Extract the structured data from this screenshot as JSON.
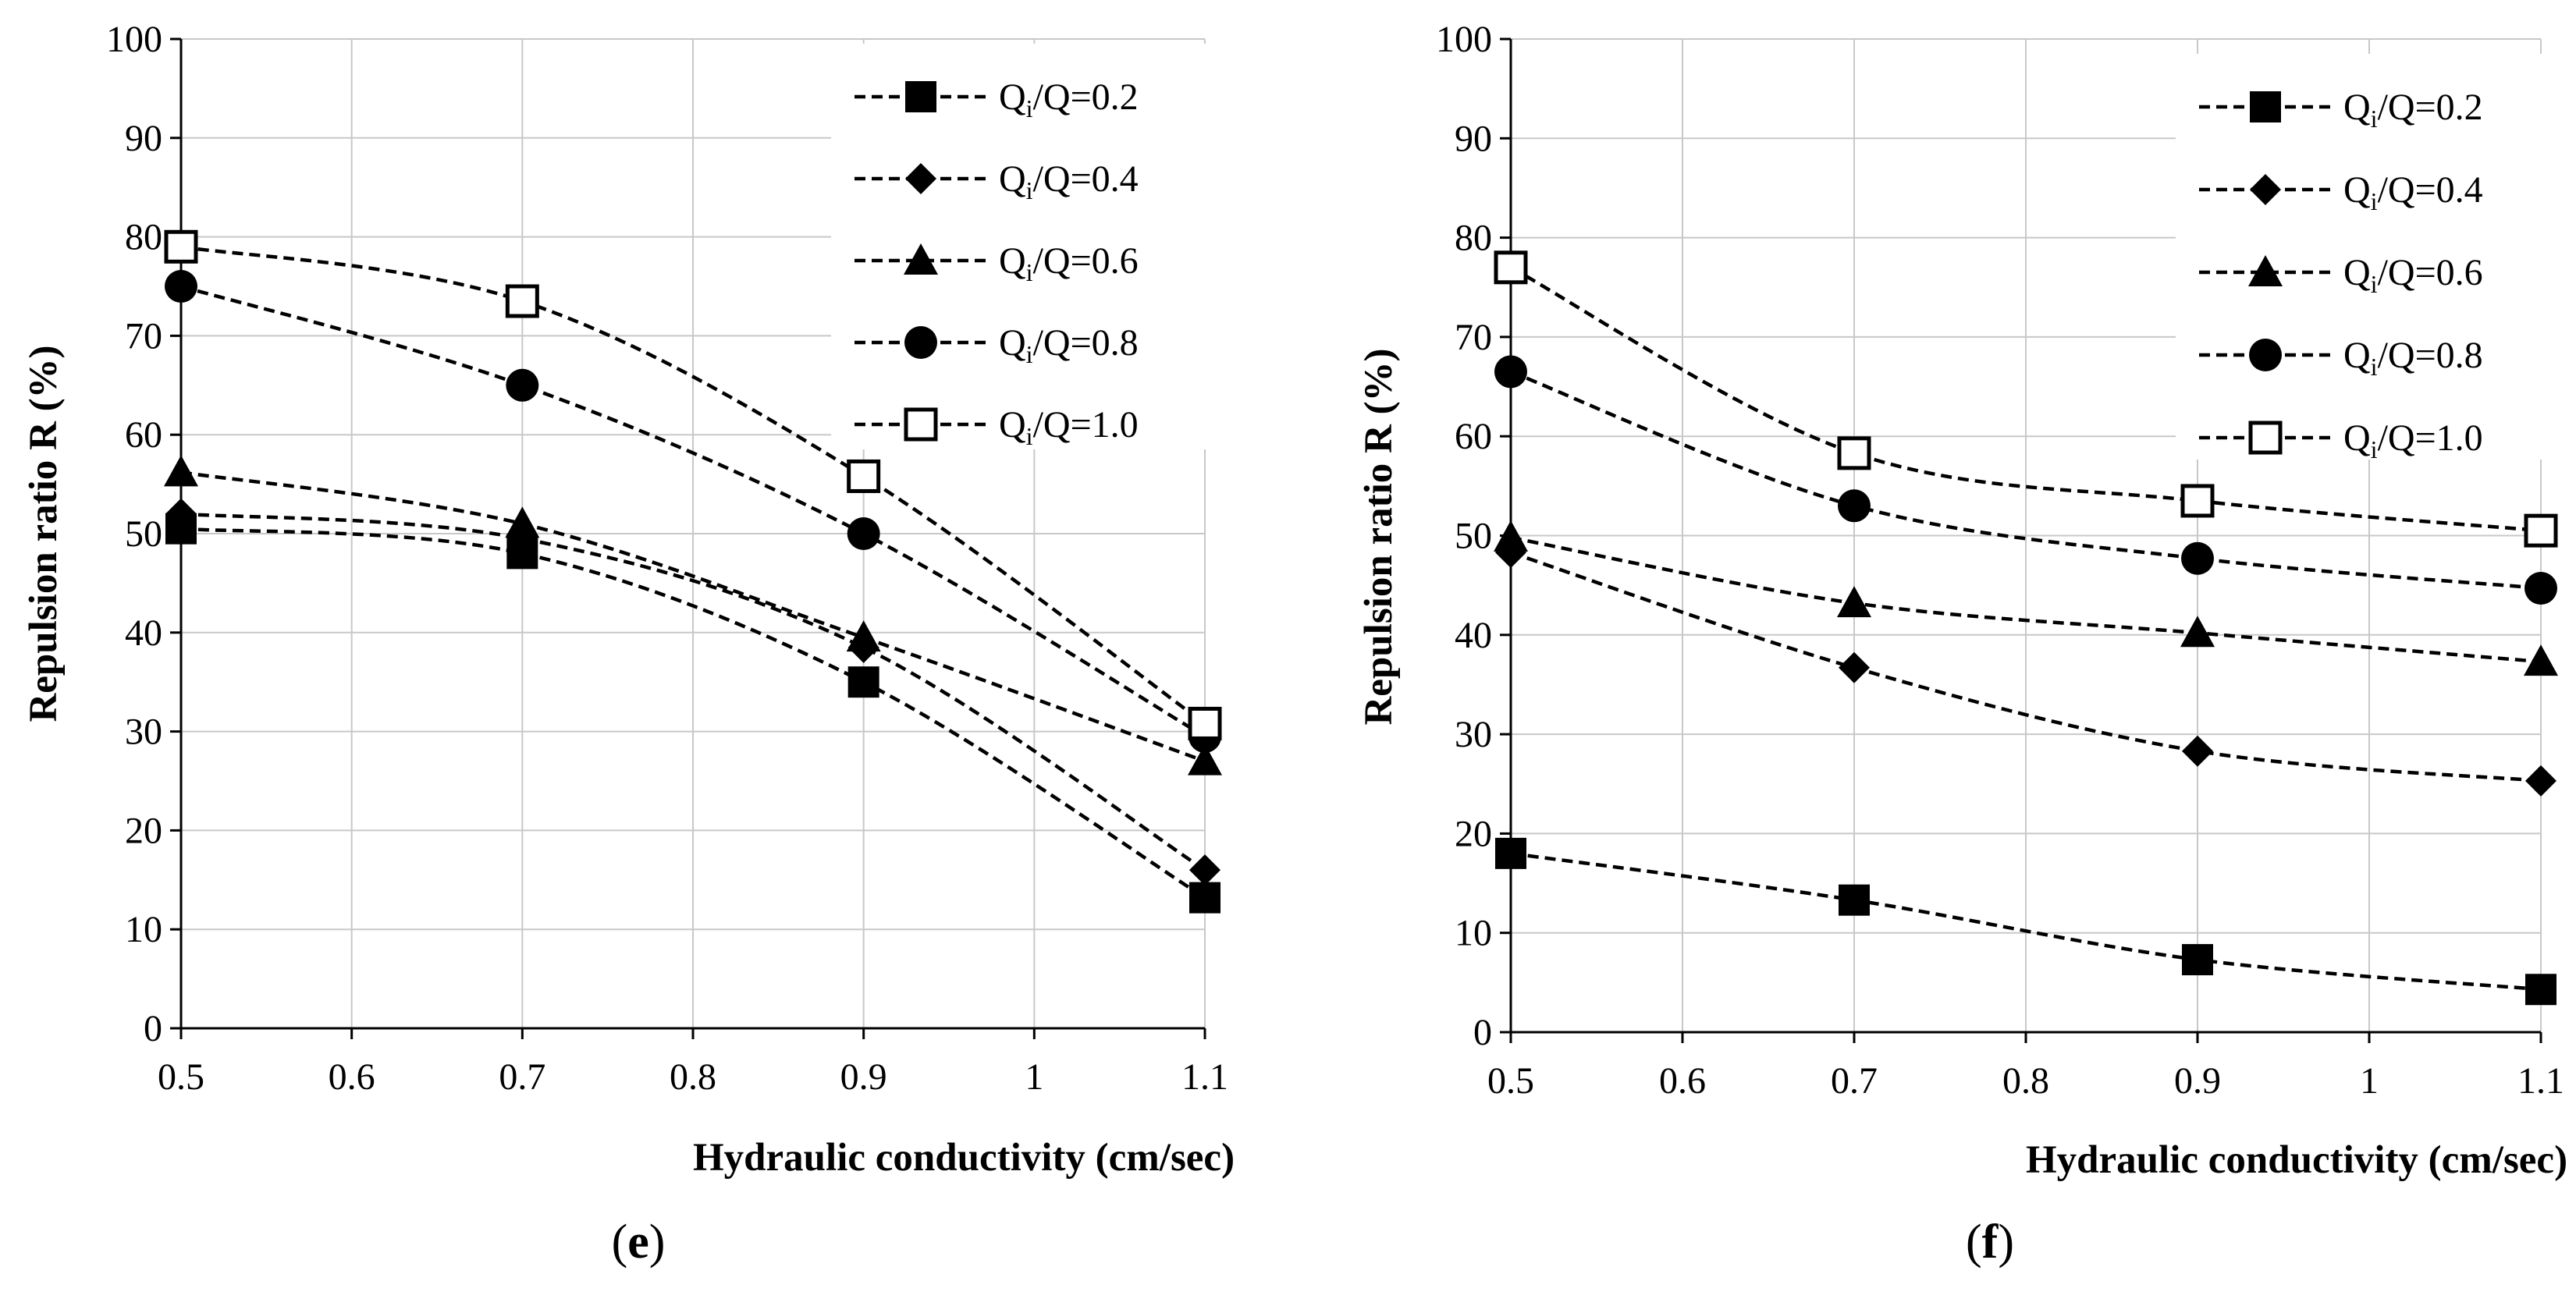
{
  "chart_data": [
    {
      "panel": "e",
      "type": "line",
      "xlabel": "Hydraulic conductivity (cm/sec)",
      "ylabel": "Repulsion ratio R (%)",
      "xlim": [
        0.5,
        1.1
      ],
      "ylim": [
        0,
        100
      ],
      "x_ticks": [
        0.5,
        0.6,
        0.7,
        0.8,
        0.9,
        1,
        1.1
      ],
      "x_tick_labels": [
        "0.5",
        "0.6",
        "0.7",
        "0.8",
        "0.9",
        "1",
        "1.1"
      ],
      "y_ticks": [
        0,
        10,
        20,
        30,
        40,
        50,
        60,
        70,
        80,
        90,
        100
      ],
      "y_tick_labels": [
        "0",
        "10",
        "20",
        "30",
        "40",
        "50",
        "60",
        "70",
        "80",
        "90",
        "100"
      ],
      "grid": true,
      "legend_position": "top-right",
      "x": [
        0.5,
        0.7,
        0.9,
        1.1
      ],
      "series": [
        {
          "name": "Qi/Q=0.2",
          "marker": "filled-square",
          "values": [
            50.5,
            48,
            35,
            13.2
          ]
        },
        {
          "name": "Qi/Q=0.4",
          "marker": "filled-diamond",
          "values": [
            52,
            49.5,
            38.5,
            16
          ]
        },
        {
          "name": "Qi/Q=0.6",
          "marker": "filled-triangle",
          "values": [
            56.2,
            51,
            39.5,
            27
          ]
        },
        {
          "name": "Qi/Q=0.8",
          "marker": "filled-circle",
          "values": [
            75,
            65,
            50,
            29.5
          ]
        },
        {
          "name": "Qi/Q=1.0",
          "marker": "open-square",
          "values": [
            79,
            73.5,
            55.8,
            30.8
          ]
        }
      ]
    },
    {
      "panel": "f",
      "type": "line",
      "xlabel": "Hydraulic conductivity (cm/sec)",
      "ylabel": "Repulsion ratio R (%)",
      "xlim": [
        0.5,
        1.1
      ],
      "ylim": [
        0,
        100
      ],
      "x_ticks": [
        0.5,
        0.6,
        0.7,
        0.8,
        0.9,
        1,
        1.1
      ],
      "x_tick_labels": [
        "0.5",
        "0.6",
        "0.7",
        "0.8",
        "0.9",
        "1",
        "1.1"
      ],
      "y_ticks": [
        0,
        10,
        20,
        30,
        40,
        50,
        60,
        70,
        80,
        90,
        100
      ],
      "y_tick_labels": [
        "0",
        "10",
        "20",
        "30",
        "40",
        "50",
        "60",
        "70",
        "80",
        "90",
        "100"
      ],
      "grid": true,
      "legend_position": "top-right",
      "x": [
        0.5,
        0.7,
        0.9,
        1.1
      ],
      "series": [
        {
          "name": "Qi/Q=0.2",
          "marker": "filled-square",
          "values": [
            18,
            13.3,
            7.3,
            4.3
          ]
        },
        {
          "name": "Qi/Q=0.4",
          "marker": "filled-diamond",
          "values": [
            48.3,
            36.7,
            28.3,
            25.3
          ]
        },
        {
          "name": "Qi/Q=0.6",
          "marker": "filled-triangle",
          "values": [
            49.8,
            43.2,
            40.2,
            37.3
          ]
        },
        {
          "name": "Qi/Q=0.8",
          "marker": "filled-circle",
          "values": [
            66.5,
            53,
            47.7,
            44.7
          ]
        },
        {
          "name": "Qi/Q=1.0",
          "marker": "open-square",
          "values": [
            77,
            58.3,
            53.5,
            50.5
          ]
        }
      ]
    }
  ],
  "legend_entries": [
    {
      "q": "Q",
      "sub": "i",
      "rest": "/Q=0.2"
    },
    {
      "q": "Q",
      "sub": "i",
      "rest": "/Q=0.4"
    },
    {
      "q": "Q",
      "sub": "i",
      "rest": "/Q=0.6"
    },
    {
      "q": "Q",
      "sub": "i",
      "rest": "/Q=0.8"
    },
    {
      "q": "Q",
      "sub": "i",
      "rest": "/Q=1.0"
    }
  ],
  "panel_labels": [
    {
      "open": "(",
      "letter": "e",
      "close": ")"
    },
    {
      "open": "(",
      "letter": "f",
      "close": ")"
    }
  ]
}
